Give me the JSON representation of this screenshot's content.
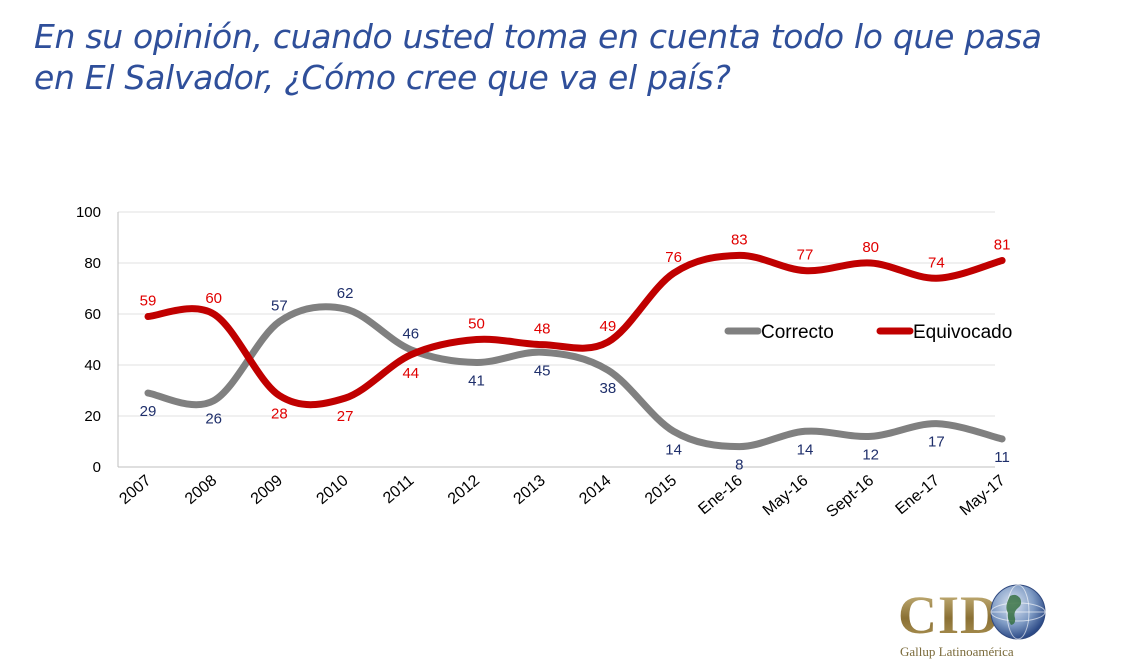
{
  "title": {
    "line1": "En su opinión, cuando usted toma en cuenta todo lo que pasa",
    "line2": "en El Salvador, ¿Cómo cree que va el país?"
  },
  "chart_data": {
    "type": "line",
    "title": "En su opinión, cuando usted toma en cuenta todo lo que pasa en El Salvador, ¿Cómo cree que va el país?",
    "categories": [
      "2007",
      "2008",
      "2009",
      "2010",
      "2011",
      "2012",
      "2013",
      "2014",
      "2015",
      "Ene-16",
      "May-16",
      "Sept-16",
      "Ene-17",
      "May-17"
    ],
    "series": [
      {
        "name": "Correcto",
        "color": "#808080",
        "label_color": "#1f2f6b",
        "values": [
          29,
          26,
          57,
          62,
          46,
          41,
          45,
          38,
          14,
          8,
          14,
          12,
          17,
          11
        ]
      },
      {
        "name": "Equivocado",
        "color": "#c00000",
        "label_color": "#e00000",
        "values": [
          59,
          60,
          28,
          27,
          44,
          50,
          48,
          49,
          76,
          83,
          77,
          80,
          74,
          81
        ]
      }
    ],
    "ylim": [
      0,
      100
    ],
    "yticks": [
      "0",
      "20",
      "40",
      "60",
      "80",
      "100"
    ],
    "grid": true,
    "legend": "right"
  },
  "logo": {
    "name": "CID",
    "subtitle": "Gallup Latinoamérica"
  }
}
